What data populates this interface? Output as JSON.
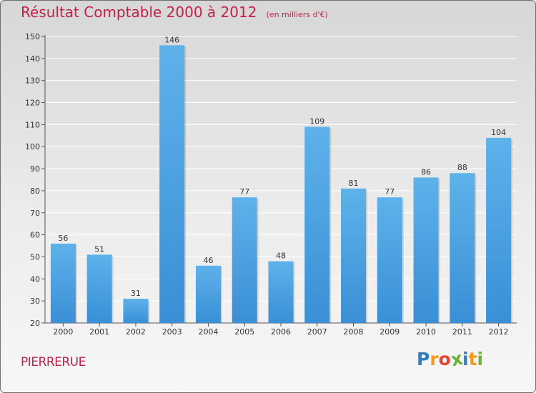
{
  "chart_data": {
    "type": "bar",
    "title": "Résultat Comptable 2000 à 2012",
    "unit_note": "(en milliers d'€)",
    "categories": [
      "2000",
      "2001",
      "2002",
      "2003",
      "2004",
      "2005",
      "2006",
      "2007",
      "2008",
      "2009",
      "2010",
      "2011",
      "2012"
    ],
    "values": [
      56,
      51,
      31,
      146,
      46,
      77,
      48,
      109,
      81,
      77,
      86,
      88,
      104
    ],
    "ylim": [
      20,
      150
    ],
    "yticks": [
      20,
      30,
      40,
      50,
      60,
      70,
      80,
      90,
      100,
      110,
      120,
      130,
      140,
      150
    ],
    "xlabel": "",
    "ylabel": "",
    "grid": true,
    "bar_color": "#3a8fd6",
    "bar_color_light": "#5eb2ea"
  },
  "commune": "PIERRERUE",
  "logo": {
    "letters": [
      "P",
      "r",
      "o",
      "x",
      "i",
      "t",
      "i"
    ],
    "colors": [
      "#2e7fc2",
      "#f39a1e",
      "#e8432c",
      "#6bb335",
      "#2e7fc2",
      "#f39a1e",
      "#6bb335"
    ]
  },
  "colors": {
    "accent": "#c0224a"
  }
}
